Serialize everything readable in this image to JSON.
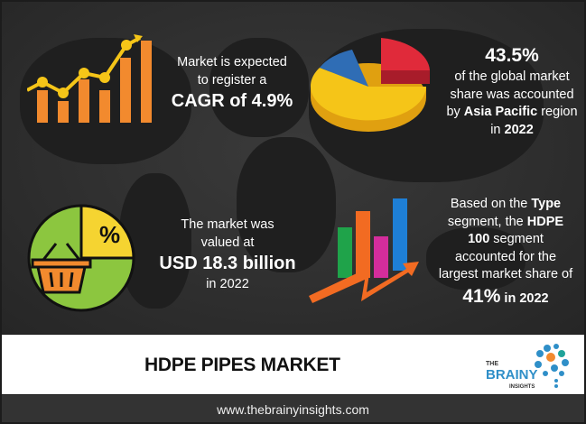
{
  "title": "HDPE PIPES MARKET",
  "website": "www.thebrainyinsights.com",
  "logo": {
    "line1": "THE",
    "line2": "BRAINY",
    "line3": "INSIGHTS"
  },
  "cagr": {
    "line1": "Market is expected",
    "line2": "to register a",
    "highlight": "CAGR of 4.9%"
  },
  "region": {
    "value": "43.5%",
    "line1": "of the global market",
    "line2": "share was accounted",
    "line3_pre": "by ",
    "line3_bold": "Asia Pacific",
    "line3_post": " region",
    "line4_pre": "in ",
    "line4_bold": "2022"
  },
  "size": {
    "line1": "The market was",
    "line2": "valued at",
    "highlight": "USD 18.3 billion",
    "line4": "in 2022",
    "icon_text": "%"
  },
  "segment": {
    "l1_pre": "Based on the ",
    "l1_bold": "Type",
    "l2_pre": "segment, the ",
    "l2_bold": "HDPE",
    "l3_bold": "100",
    "l3_post": " segment",
    "l4": "accounted for the",
    "l5": "largest market share of",
    "l6_bold": "41%",
    "l6_post": " in 2022"
  },
  "colors": {
    "orange": "#f28a2e",
    "yellow": "#f5c518",
    "red": "#e02a3a",
    "blue": "#2f6db5",
    "green": "#8cc63f",
    "pink": "#d42d9c",
    "background": "#2e2e2e"
  }
}
